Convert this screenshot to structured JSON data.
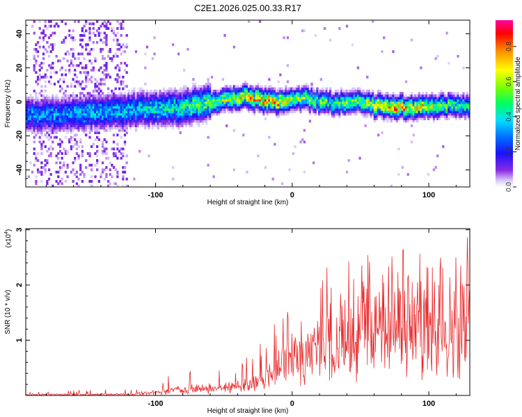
{
  "chart_data": [
    {
      "type": "heatmap",
      "title": "C2E1.2026.025.00.33.R17",
      "xlabel": "Height of straight line (km)",
      "ylabel": "Frequency (Hz)",
      "xlim": [
        -195,
        130
      ],
      "ylim": [
        -50,
        48
      ],
      "xticks": [
        -100,
        0,
        100
      ],
      "xtick_labels": [
        "-100",
        "0",
        "100"
      ],
      "yticks": [
        -40,
        -20,
        0,
        20,
        40
      ],
      "ytick_labels": [
        "-40",
        "-20",
        "0",
        "20",
        "40"
      ],
      "colorbar": {
        "label": "Normalized spectral amplitude",
        "range": [
          0,
          0.95
        ],
        "ticks": [
          0.0,
          0.2,
          0.4,
          0.6,
          0.8
        ],
        "tick_labels": [
          "0.0",
          "0.2",
          "0.4",
          "0.6",
          "0.8"
        ]
      },
      "ridge": {
        "x": [
          -195,
          -170,
          -150,
          -120,
          -100,
          -80,
          -60,
          -45,
          -35,
          -20,
          -10,
          0,
          10,
          30,
          50,
          60,
          80,
          100,
          115,
          130
        ],
        "freq_hz": [
          -8,
          -7,
          -6,
          -5,
          -4,
          -3,
          0,
          2,
          3,
          1,
          0,
          1,
          2,
          -1,
          1,
          -2,
          -3,
          -3,
          -2,
          -2
        ],
        "peak_amplitude": [
          0.35,
          0.35,
          0.4,
          0.4,
          0.45,
          0.5,
          0.6,
          0.7,
          0.75,
          0.9,
          0.85,
          0.6,
          0.6,
          0.55,
          0.6,
          0.75,
          0.85,
          0.7,
          0.55,
          0.5
        ]
      }
    },
    {
      "type": "line",
      "xlabel": "Height of straight line (km)",
      "ylabel": "SNR (10 * v/v)",
      "y_multiplier": "(x10",
      "y_multiplier_exp": "4",
      "y_multiplier_close": ")",
      "xlim": [
        -195,
        130
      ],
      "ylim": [
        0,
        3.02
      ],
      "xticks": [
        -100,
        0,
        100
      ],
      "xtick_labels": [
        "-100",
        "0",
        "100"
      ],
      "yticks": [
        1,
        2,
        3
      ],
      "ytick_labels": [
        "1",
        "2",
        "3"
      ],
      "color": "#e8282a",
      "envelope": {
        "x": [
          -195,
          -150,
          -120,
          -100,
          -80,
          -60,
          -40,
          -30,
          -20,
          -10,
          0,
          10,
          20,
          30,
          40,
          50,
          60,
          80,
          100,
          115,
          130
        ],
        "baseline": [
          0.01,
          0.01,
          0.01,
          0.03,
          0.06,
          0.1,
          0.12,
          0.15,
          0.25,
          0.5,
          0.6,
          0.8,
          0.9,
          1.0,
          1.1,
          1.2,
          1.25,
          1.3,
          1.3,
          1.25,
          1.2
        ],
        "max": [
          0.08,
          0.1,
          0.12,
          0.25,
          0.6,
          0.5,
          0.55,
          0.9,
          1.1,
          1.4,
          1.9,
          2.2,
          2.3,
          2.4,
          2.45,
          2.6,
          2.7,
          2.8,
          2.85,
          2.9,
          3.0
        ]
      }
    }
  ]
}
